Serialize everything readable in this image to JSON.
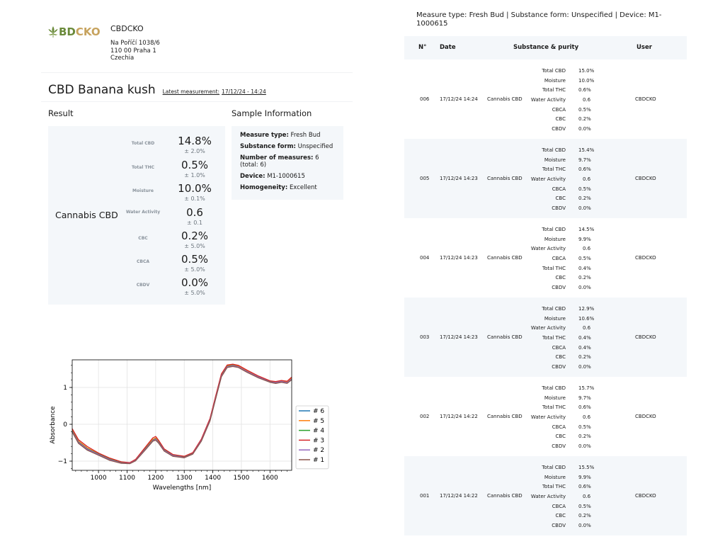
{
  "company": {
    "logo_text_a": "BD",
    "logo_text_b": "CKO",
    "name": "CBDCKO",
    "address": [
      "Na Poříčí 1038/6",
      "110 00 Praha 1",
      "Czechia"
    ]
  },
  "product": {
    "title": "CBD Banana kush",
    "latest_label": "Latest measurement:",
    "latest_value": "17/12/24 - 14:24"
  },
  "sections": {
    "result": "Result",
    "sample_info": "Sample Information"
  },
  "result": {
    "product_name": "Cannabis CBD",
    "metrics": [
      {
        "label": "Total CBD",
        "value": "14.8%",
        "error": "± 2.0%"
      },
      {
        "label": "Total THC",
        "value": "0.5%",
        "error": "± 1.0%"
      },
      {
        "label": "Moisture",
        "value": "10.0%",
        "error": "± 0.1%"
      },
      {
        "label": "Water Activity",
        "value": "0.6",
        "error": "± 0.1"
      },
      {
        "label": "CBC",
        "value": "0.2%",
        "error": "± 5.0%"
      },
      {
        "label": "CBCA",
        "value": "0.5%",
        "error": "± 5.0%"
      },
      {
        "label": "CBDV",
        "value": "0.0%",
        "error": "± 5.0%"
      }
    ]
  },
  "sample_info": [
    {
      "key": "Measure type:",
      "value": "Fresh Bud"
    },
    {
      "key": "Substance form:",
      "value": "Unspecified"
    },
    {
      "key": "Number of measures:",
      "value": "6 (total: 6)"
    },
    {
      "key": "Device:",
      "value": "M1-1000615"
    },
    {
      "key": "Homogeneity:",
      "value": "Excellent"
    }
  ],
  "measure_title": "Measure type: Fresh Bud | Substance form: Unspecified | Device: M1-1000615",
  "table": {
    "headers": {
      "no": "N°",
      "date": "Date",
      "substance": "Substance & purity",
      "user": "User"
    },
    "rows": [
      {
        "no": "006",
        "date": "17/12/24 14:24",
        "substance": "Cannabis CBD",
        "user": "CBDCKO",
        "purity": [
          [
            "Total CBD",
            "15.0%"
          ],
          [
            "Moisture",
            "10.0%"
          ],
          [
            "Total THC",
            "0.6%"
          ],
          [
            "Water Activity",
            "0.6"
          ],
          [
            "CBCA",
            "0.5%"
          ],
          [
            "CBC",
            "0.2%"
          ],
          [
            "CBDV",
            "0.0%"
          ]
        ]
      },
      {
        "no": "005",
        "date": "17/12/24 14:23",
        "substance": "Cannabis CBD",
        "user": "CBDCKO",
        "purity": [
          [
            "Total CBD",
            "15.4%"
          ],
          [
            "Moisture",
            "9.7%"
          ],
          [
            "Total THC",
            "0.6%"
          ],
          [
            "Water Activity",
            "0.6"
          ],
          [
            "CBCA",
            "0.5%"
          ],
          [
            "CBC",
            "0.2%"
          ],
          [
            "CBDV",
            "0.0%"
          ]
        ]
      },
      {
        "no": "004",
        "date": "17/12/24 14:23",
        "substance": "Cannabis CBD",
        "user": "CBDCKO",
        "purity": [
          [
            "Total CBD",
            "14.5%"
          ],
          [
            "Moisture",
            "9.9%"
          ],
          [
            "Water Activity",
            "0.6"
          ],
          [
            "CBCA",
            "0.5%"
          ],
          [
            "Total THC",
            "0.4%"
          ],
          [
            "CBC",
            "0.2%"
          ],
          [
            "CBDV",
            "0.0%"
          ]
        ]
      },
      {
        "no": "003",
        "date": "17/12/24 14:23",
        "substance": "Cannabis CBD",
        "user": "CBDCKO",
        "purity": [
          [
            "Total CBD",
            "12.9%"
          ],
          [
            "Moisture",
            "10.6%"
          ],
          [
            "Water Activity",
            "0.6"
          ],
          [
            "Total THC",
            "0.4%"
          ],
          [
            "CBCA",
            "0.4%"
          ],
          [
            "CBC",
            "0.2%"
          ],
          [
            "CBDV",
            "0.0%"
          ]
        ]
      },
      {
        "no": "002",
        "date": "17/12/24 14:22",
        "substance": "Cannabis CBD",
        "user": "CBDCKO",
        "purity": [
          [
            "Total CBD",
            "15.7%"
          ],
          [
            "Moisture",
            "9.7%"
          ],
          [
            "Total THC",
            "0.6%"
          ],
          [
            "Water Activity",
            "0.6"
          ],
          [
            "CBCA",
            "0.5%"
          ],
          [
            "CBC",
            "0.2%"
          ],
          [
            "CBDV",
            "0.0%"
          ]
        ]
      },
      {
        "no": "001",
        "date": "17/12/24 14:22",
        "substance": "Cannabis CBD",
        "user": "CBDCKO",
        "purity": [
          [
            "Total CBD",
            "15.5%"
          ],
          [
            "Moisture",
            "9.9%"
          ],
          [
            "Total THC",
            "0.6%"
          ],
          [
            "Water Activity",
            "0.6"
          ],
          [
            "CBCA",
            "0.5%"
          ],
          [
            "CBC",
            "0.2%"
          ],
          [
            "CBDV",
            "0.0%"
          ]
        ]
      }
    ]
  },
  "chart_data": {
    "type": "line",
    "xlabel": "Wavelengths [nm]",
    "ylabel": "Absorbance",
    "xlim": [
      908,
      1676
    ],
    "ylim": [
      -1.25,
      1.75
    ],
    "xticks": [
      "1000",
      "1100",
      "1200",
      "1300",
      "1400",
      "1500",
      "1600"
    ],
    "yticks": [
      "1",
      "0",
      "−1"
    ],
    "grid": true,
    "legend_position": "right",
    "x": [
      908,
      930,
      960,
      1000,
      1040,
      1080,
      1110,
      1130,
      1160,
      1190,
      1200,
      1210,
      1230,
      1260,
      1300,
      1330,
      1360,
      1390,
      1410,
      1430,
      1450,
      1470,
      1490,
      1520,
      1560,
      1600,
      1620,
      1640,
      1660,
      1676
    ],
    "series": [
      {
        "name": "# 6",
        "color": "#1f77b4",
        "values": [
          -0.2,
          -0.5,
          -0.68,
          -0.82,
          -0.96,
          -1.05,
          -1.06,
          -0.98,
          -0.72,
          -0.45,
          -0.42,
          -0.5,
          -0.72,
          -0.86,
          -0.9,
          -0.8,
          -0.45,
          0.1,
          0.7,
          1.3,
          1.55,
          1.58,
          1.55,
          1.42,
          1.27,
          1.15,
          1.12,
          1.15,
          1.12,
          1.22
        ]
      },
      {
        "name": "# 5",
        "color": "#ff7f0e",
        "values": [
          -0.16,
          -0.46,
          -0.64,
          -0.8,
          -0.94,
          -1.03,
          -1.05,
          -0.96,
          -0.69,
          -0.41,
          -0.37,
          -0.46,
          -0.69,
          -0.83,
          -0.88,
          -0.78,
          -0.42,
          0.13,
          0.74,
          1.34,
          1.59,
          1.61,
          1.58,
          1.45,
          1.3,
          1.17,
          1.14,
          1.17,
          1.15,
          1.25
        ]
      },
      {
        "name": "# 4",
        "color": "#2ca02c",
        "values": [
          -0.18,
          -0.48,
          -0.66,
          -0.81,
          -0.95,
          -1.04,
          -1.05,
          -0.97,
          -0.7,
          -0.43,
          -0.39,
          -0.48,
          -0.7,
          -0.84,
          -0.89,
          -0.79,
          -0.43,
          0.12,
          0.72,
          1.32,
          1.57,
          1.6,
          1.56,
          1.43,
          1.28,
          1.16,
          1.13,
          1.16,
          1.13,
          1.23
        ]
      },
      {
        "name": "# 3",
        "color": "#d62728",
        "values": [
          -0.12,
          -0.42,
          -0.6,
          -0.78,
          -0.92,
          -1.02,
          -1.04,
          -0.95,
          -0.66,
          -0.37,
          -0.33,
          -0.43,
          -0.67,
          -0.82,
          -0.87,
          -0.77,
          -0.4,
          0.16,
          0.77,
          1.37,
          1.61,
          1.63,
          1.6,
          1.47,
          1.31,
          1.18,
          1.16,
          1.19,
          1.17,
          1.28
        ]
      },
      {
        "name": "# 2",
        "color": "#9467bd",
        "values": [
          -0.19,
          -0.49,
          -0.67,
          -0.82,
          -0.96,
          -1.05,
          -1.06,
          -0.98,
          -0.71,
          -0.44,
          -0.4,
          -0.49,
          -0.71,
          -0.85,
          -0.9,
          -0.8,
          -0.44,
          0.11,
          0.71,
          1.31,
          1.56,
          1.59,
          1.56,
          1.43,
          1.28,
          1.15,
          1.13,
          1.16,
          1.13,
          1.23
        ]
      },
      {
        "name": "# 1",
        "color": "#8c564b",
        "values": [
          -0.21,
          -0.52,
          -0.7,
          -0.84,
          -0.98,
          -1.06,
          -1.07,
          -0.99,
          -0.73,
          -0.46,
          -0.43,
          -0.51,
          -0.73,
          -0.87,
          -0.91,
          -0.81,
          -0.46,
          0.09,
          0.69,
          1.29,
          1.54,
          1.57,
          1.54,
          1.41,
          1.26,
          1.14,
          1.11,
          1.14,
          1.11,
          1.21
        ]
      }
    ]
  }
}
